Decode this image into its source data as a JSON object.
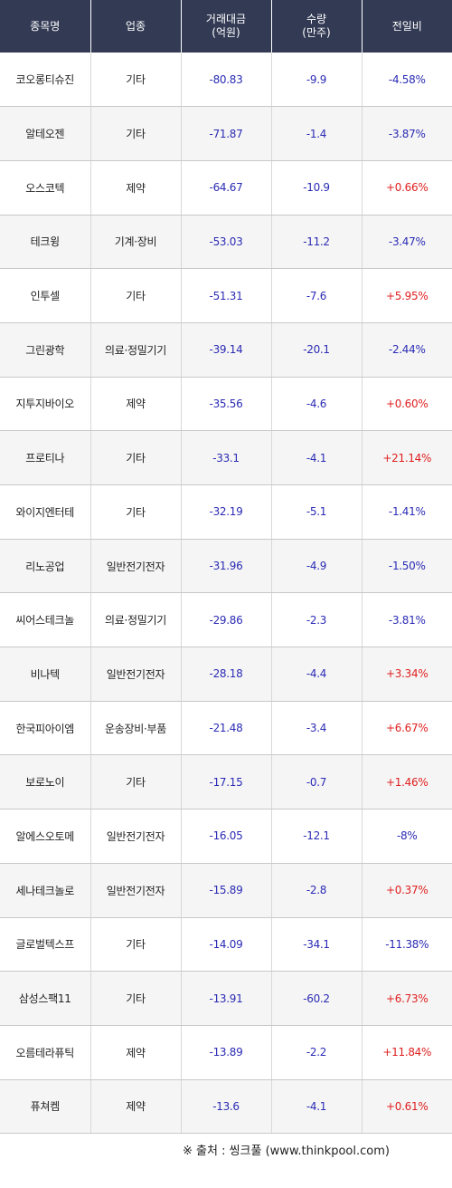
{
  "headers": {
    "name": "종목명",
    "sector": "업종",
    "amount_line1": "거래대금",
    "amount_line2": "(억원)",
    "volume_line1": "수량",
    "volume_line2": "(만주)",
    "change": "전일비"
  },
  "colors": {
    "header_bg": "#333a54",
    "negative_blue": "#2b2bb5",
    "positive_red": "#e02020"
  },
  "rows": [
    {
      "name": "코오롱티슈진",
      "sector": "기타",
      "amount": "-80.83",
      "volume": "-9.9",
      "change": "-4.58%",
      "dir": "down"
    },
    {
      "name": "알테오젠",
      "sector": "기타",
      "amount": "-71.87",
      "volume": "-1.4",
      "change": "-3.87%",
      "dir": "down"
    },
    {
      "name": "오스코텍",
      "sector": "제약",
      "amount": "-64.67",
      "volume": "-10.9",
      "change": "+0.66%",
      "dir": "up"
    },
    {
      "name": "테크윙",
      "sector": "기계·장비",
      "amount": "-53.03",
      "volume": "-11.2",
      "change": "-3.47%",
      "dir": "down"
    },
    {
      "name": "인투셀",
      "sector": "기타",
      "amount": "-51.31",
      "volume": "-7.6",
      "change": "+5.95%",
      "dir": "up"
    },
    {
      "name": "그린광학",
      "sector": "의료·정밀기기",
      "amount": "-39.14",
      "volume": "-20.1",
      "change": "-2.44%",
      "dir": "down"
    },
    {
      "name": "지투지바이오",
      "sector": "제약",
      "amount": "-35.56",
      "volume": "-4.6",
      "change": "+0.60%",
      "dir": "up"
    },
    {
      "name": "프로티나",
      "sector": "기타",
      "amount": "-33.1",
      "volume": "-4.1",
      "change": "+21.14%",
      "dir": "up"
    },
    {
      "name": "와이지엔터테",
      "sector": "기타",
      "amount": "-32.19",
      "volume": "-5.1",
      "change": "-1.41%",
      "dir": "down"
    },
    {
      "name": "리노공업",
      "sector": "일반전기전자",
      "amount": "-31.96",
      "volume": "-4.9",
      "change": "-1.50%",
      "dir": "down"
    },
    {
      "name": "씨어스테크놀",
      "sector": "의료·정밀기기",
      "amount": "-29.86",
      "volume": "-2.3",
      "change": "-3.81%",
      "dir": "down"
    },
    {
      "name": "비나텍",
      "sector": "일반전기전자",
      "amount": "-28.18",
      "volume": "-4.4",
      "change": "+3.34%",
      "dir": "up"
    },
    {
      "name": "한국피아이엠",
      "sector": "운송장비·부품",
      "amount": "-21.48",
      "volume": "-3.4",
      "change": "+6.67%",
      "dir": "up"
    },
    {
      "name": "보로노이",
      "sector": "기타",
      "amount": "-17.15",
      "volume": "-0.7",
      "change": "+1.46%",
      "dir": "up"
    },
    {
      "name": "알에스오토메",
      "sector": "일반전기전자",
      "amount": "-16.05",
      "volume": "-12.1",
      "change": "-8%",
      "dir": "down"
    },
    {
      "name": "세나테크놀로",
      "sector": "일반전기전자",
      "amount": "-15.89",
      "volume": "-2.8",
      "change": "+0.37%",
      "dir": "up"
    },
    {
      "name": "글로벌텍스프",
      "sector": "기타",
      "amount": "-14.09",
      "volume": "-34.1",
      "change": "-11.38%",
      "dir": "down"
    },
    {
      "name": "삼성스팩11",
      "sector": "기타",
      "amount": "-13.91",
      "volume": "-60.2",
      "change": "+6.73%",
      "dir": "up"
    },
    {
      "name": "오름테라퓨틱",
      "sector": "제약",
      "amount": "-13.89",
      "volume": "-2.2",
      "change": "+11.84%",
      "dir": "up"
    },
    {
      "name": "퓨쳐켐",
      "sector": "제약",
      "amount": "-13.6",
      "volume": "-4.1",
      "change": "+0.61%",
      "dir": "up"
    }
  ],
  "footer": "※ 출처 : 씽크풀 (www.thinkpool.com)"
}
